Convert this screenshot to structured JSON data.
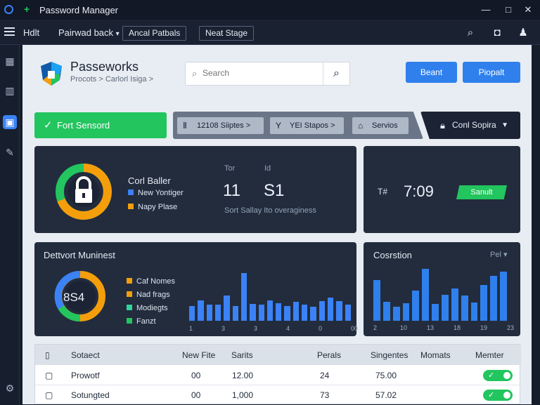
{
  "window": {
    "title": "Password Manager"
  },
  "menubar": {
    "items": [
      "Hdlt",
      "Pairwad back",
      "Ancal Patbals",
      "Neat Stage"
    ]
  },
  "header": {
    "brand": "Passeworks",
    "breadcrumb": "Procots > Carlorl Isiga >",
    "search_placeholder": "Search",
    "buttons": [
      "Beant",
      "Piopalt"
    ]
  },
  "toolbar": {
    "primary": "Fort Sensord",
    "pills": [
      "12108 Siiptes >",
      "YEI Stapos >",
      "Servios"
    ],
    "dropdown": "Conl Sopira"
  },
  "summary": {
    "title": "Corl Baller",
    "legend": [
      "New Yontiger",
      "Napy Plase"
    ],
    "labels": [
      "Tor",
      "Id"
    ],
    "values": [
      "11",
      "S1"
    ],
    "note": "Sort Sallay Ito overaginess"
  },
  "clock": {
    "label": "T#",
    "time": "7:09",
    "button": "Sanult"
  },
  "management": {
    "title": "Dettvort Muninest",
    "center_value": "8S4",
    "legend": [
      "Caf Nomes",
      "Nad frags",
      "Modiegts",
      "Fanzt"
    ],
    "bars": [
      28,
      38,
      30,
      30,
      48,
      28,
      90,
      32,
      30,
      38,
      33,
      28,
      36,
      30,
      26,
      37,
      44,
      37,
      30
    ],
    "x_labels": [
      "1",
      "3",
      "3",
      "4",
      "0",
      "00"
    ],
    "colors": {
      "orange": "#f59e0b",
      "blue": "#3b82f6",
      "green": "#22c55e",
      "teal": "#34d399"
    }
  },
  "correlation": {
    "title": "Cosrstion",
    "dropdown": "Pel",
    "bars": [
      64,
      30,
      22,
      28,
      48,
      82,
      27,
      41,
      51,
      40,
      29,
      56,
      71,
      78
    ],
    "x_labels": [
      "2",
      "10",
      "13",
      "18",
      "19",
      "23"
    ]
  },
  "table": {
    "headers": [
      "Sotaect",
      "New Fite",
      "Sarits",
      "Perals",
      "Singentes",
      "Momats",
      "Memter"
    ],
    "rows": [
      [
        "Prowotf",
        "00",
        "12.00",
        "24",
        "75.00"
      ],
      [
        "Sotungted",
        "00",
        "1,000",
        "73",
        "57.02"
      ]
    ]
  }
}
